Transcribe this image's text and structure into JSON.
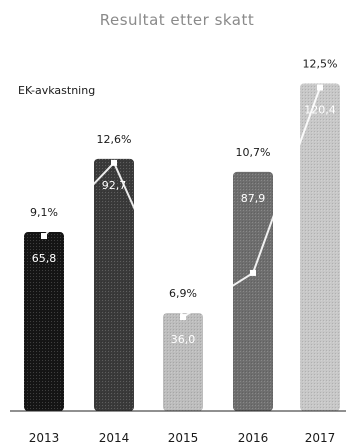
{
  "chart_data": {
    "type": "bar",
    "title": "Resultat etter skatt",
    "categories": [
      "2013",
      "2014",
      "2015",
      "2016",
      "2017"
    ],
    "series": [
      {
        "values": [
          65.8,
          92.7,
          36.0,
          87.9,
          120.4
        ]
      },
      {
        "name": "EK-avkastning",
        "type": "line",
        "values": [
          9.1,
          12.6,
          6.9,
          10.7,
          12.5
        ]
      }
    ],
    "bar_value_labels": [
      "65,8",
      "92,7",
      "36,0",
      "87,9",
      "120,4"
    ],
    "line_value_labels": [
      "9,1%",
      "12,6%",
      "6,9%",
      "10,7%",
      "12,5%"
    ],
    "bar_colors": [
      "#151515",
      "#3a3a3a",
      "#bdbdbd",
      "#6e6e6e",
      "#c8c8c8"
    ],
    "line_color": "#ffffff",
    "legend": "EK-avkastning",
    "ylim": [
      0,
      130
    ]
  }
}
